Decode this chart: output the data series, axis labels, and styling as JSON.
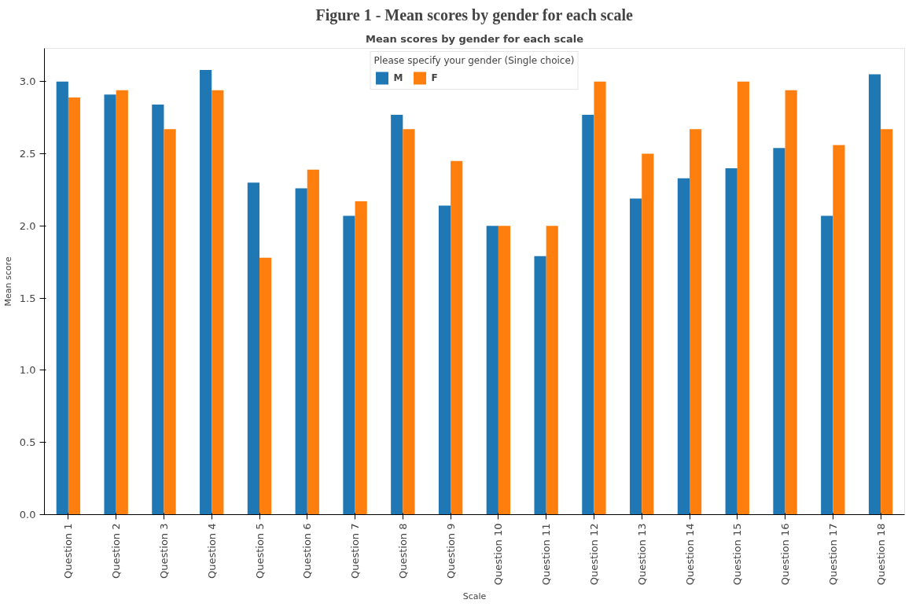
{
  "chart_data": {
    "type": "bar",
    "title": "Figure 1 - Mean scores by gender for each scale",
    "subtitle": "Mean scores by gender for each scale",
    "xlabel": "Scale",
    "ylabel": "Mean score",
    "legend_title": "Please specify your gender (Single choice)",
    "legend": "top",
    "grid": false,
    "categories": [
      "Question 1",
      "Question 2",
      "Question 3",
      "Question 4",
      "Question 5",
      "Question 6",
      "Question 7",
      "Question 8",
      "Question 9",
      "Question 10",
      "Question 11",
      "Question 12",
      "Question 13",
      "Question 14",
      "Question 15",
      "Question 16",
      "Question 17",
      "Question 18"
    ],
    "series": [
      {
        "name": "M",
        "color": "#1f77b4",
        "values": [
          3.0,
          2.91,
          2.84,
          3.08,
          2.3,
          2.26,
          2.07,
          2.77,
          2.14,
          2.0,
          1.79,
          2.77,
          2.19,
          2.33,
          2.4,
          2.54,
          2.07,
          3.05
        ]
      },
      {
        "name": "F",
        "color": "#ff7f0e",
        "values": [
          2.89,
          2.94,
          2.67,
          2.94,
          1.78,
          2.39,
          2.17,
          2.67,
          2.45,
          2.0,
          2.0,
          3.0,
          2.5,
          2.67,
          3.0,
          2.94,
          2.56,
          2.67
        ]
      }
    ],
    "ylim": [
      0,
      3.23
    ],
    "yticks": [
      {
        "value": 0,
        "label": "0.0"
      },
      {
        "value": 0.5,
        "label": "0.5"
      },
      {
        "value": 1,
        "label": "1.0"
      },
      {
        "value": 1.5,
        "label": "1.5"
      },
      {
        "value": 2,
        "label": "2.0"
      },
      {
        "value": 2.5,
        "label": "2.5"
      },
      {
        "value": 3,
        "label": "3.0"
      }
    ]
  }
}
